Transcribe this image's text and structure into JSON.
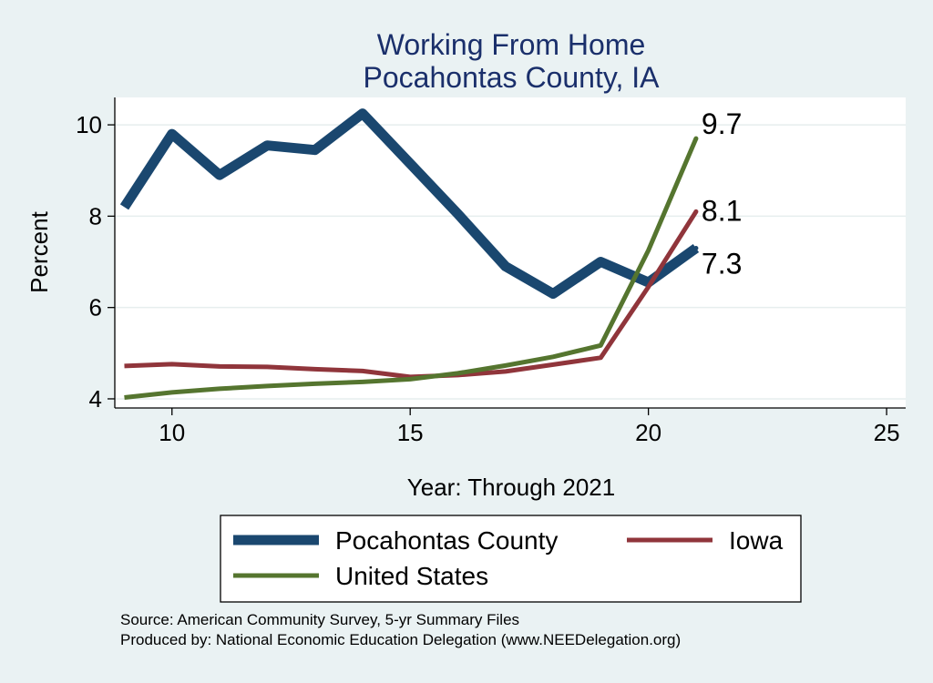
{
  "chart_data": {
    "type": "line",
    "title": "Working From Home",
    "subtitle": "Pocahontas County, IA",
    "xlabel": "Year: Through 2021",
    "ylabel": "Percent",
    "xlim": [
      8.8,
      25.4
    ],
    "ylim": [
      3.8,
      10.6
    ],
    "xticks": [
      10,
      15,
      20,
      25
    ],
    "yticks": [
      4,
      6,
      8,
      10
    ],
    "grid": true,
    "legend_position": "bottom",
    "series": [
      {
        "name": "Pocahontas County",
        "color": "#1a476f",
        "x": [
          9,
          10,
          11,
          12,
          13,
          14,
          15,
          16,
          17,
          18,
          19,
          20,
          21
        ],
        "values": [
          8.2,
          9.8,
          8.9,
          9.55,
          9.45,
          10.25,
          9.15,
          8.05,
          6.9,
          6.3,
          7.0,
          6.55,
          7.3
        ],
        "end_label": "7.3"
      },
      {
        "name": "Iowa",
        "color": "#90353b",
        "x": [
          9,
          10,
          11,
          12,
          13,
          14,
          15,
          16,
          17,
          18,
          19,
          20,
          21
        ],
        "values": [
          4.72,
          4.76,
          4.71,
          4.7,
          4.65,
          4.61,
          4.48,
          4.52,
          4.6,
          4.75,
          4.9,
          6.45,
          8.1
        ],
        "end_label": "8.1"
      },
      {
        "name": "United States",
        "color": "#55752f",
        "x": [
          9,
          10,
          11,
          12,
          13,
          14,
          15,
          16,
          17,
          18,
          19,
          20,
          21
        ],
        "values": [
          4.03,
          4.14,
          4.22,
          4.28,
          4.33,
          4.37,
          4.43,
          4.56,
          4.73,
          4.92,
          5.17,
          7.25,
          9.7
        ],
        "end_label": "9.7"
      }
    ]
  },
  "footer": {
    "source": "Source: American Community Survey, 5-yr Summary Files",
    "produced": "Produced by: National Economic Education Delegation (www.NEEDelegation.org)"
  }
}
